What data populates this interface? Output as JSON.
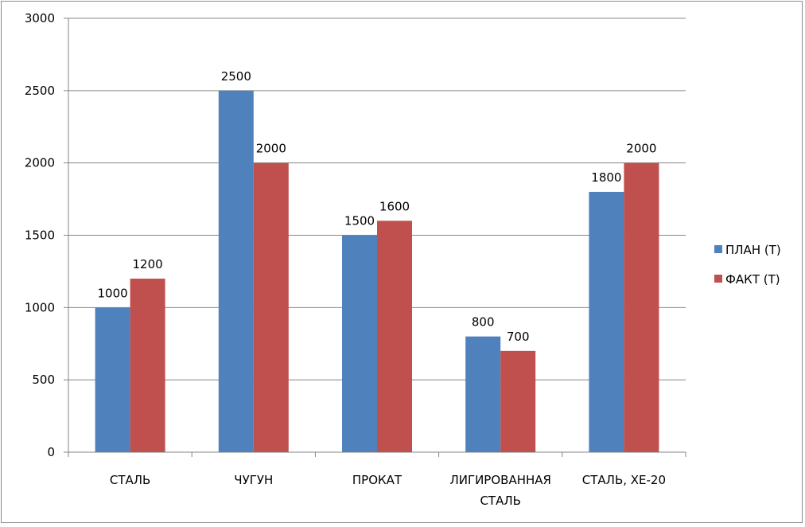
{
  "chart_data": {
    "type": "bar",
    "categories": [
      "СТАЛЬ",
      "ЧУГУН",
      "ПРОКАТ",
      "ЛИГИРОВАННАЯ СТАЛЬ",
      "СТАЛЬ, ХЕ-20"
    ],
    "category_lines": [
      [
        "СТАЛЬ"
      ],
      [
        "ЧУГУН"
      ],
      [
        "ПРОКАТ"
      ],
      [
        "ЛИГИРОВАННАЯ",
        "СТАЛЬ"
      ],
      [
        "СТАЛЬ, ХЕ-20"
      ]
    ],
    "series": [
      {
        "name": "ПЛАН (Т)",
        "color": "#4f81bd",
        "values": [
          1000,
          2500,
          1500,
          800,
          1800
        ]
      },
      {
        "name": "ФАКТ (Т)",
        "color": "#c0504d",
        "values": [
          1200,
          2000,
          1600,
          700,
          2000
        ]
      }
    ],
    "yticks": [
      0,
      500,
      1000,
      1500,
      2000,
      2500,
      3000
    ],
    "ylim": [
      0,
      3000
    ],
    "grid": true,
    "legend_position": "right",
    "gridline_color": "#868686"
  }
}
